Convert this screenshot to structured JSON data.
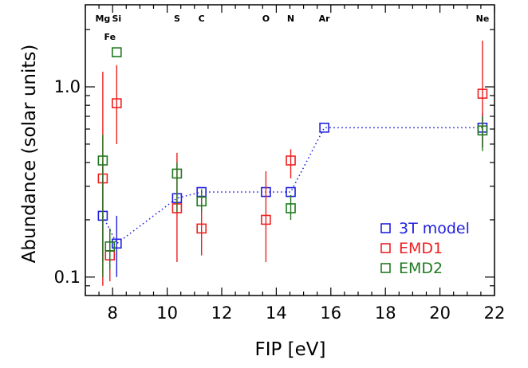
{
  "chart_data": {
    "type": "scatter",
    "title": "",
    "xlabel": "FIP [eV]",
    "ylabel": "Abundance (solar units)",
    "xlim": [
      7.0,
      22.0
    ],
    "ylim": [
      0.08,
      2.7
    ],
    "yscale": "log",
    "xticks": [
      8,
      10,
      12,
      14,
      16,
      18,
      20,
      22
    ],
    "xtick_labels": [
      "8",
      "10",
      "12",
      "14",
      "16",
      "18",
      "20",
      "22"
    ],
    "yticks": [
      0.1,
      1.0
    ],
    "ytick_labels": [
      "0.1",
      "1.0"
    ],
    "legend_position": "bottom-right",
    "element_labels": [
      {
        "text": "Mg",
        "x": 7.64,
        "row": 1
      },
      {
        "text": "Si",
        "x": 8.15,
        "row": 1
      },
      {
        "text": "Fe",
        "x": 7.9,
        "row": 2
      },
      {
        "text": "S",
        "x": 10.36,
        "row": 1
      },
      {
        "text": "C",
        "x": 11.26,
        "row": 1
      },
      {
        "text": "O",
        "x": 13.62,
        "row": 1
      },
      {
        "text": "N",
        "x": 14.53,
        "row": 1
      },
      {
        "text": "Ar",
        "x": 15.76,
        "row": 1
      },
      {
        "text": "Ne",
        "x": 21.56,
        "row": 1
      }
    ],
    "series": [
      {
        "name": "3T model",
        "color": "#2020e0",
        "line": "dotted",
        "points": [
          {
            "x": 7.64,
            "y": 0.21,
            "lo": 0.12,
            "hi": 0.4
          },
          {
            "x": 8.15,
            "y": 0.15,
            "lo": 0.1,
            "hi": 0.21
          },
          {
            "x": 10.36,
            "y": 0.26
          },
          {
            "x": 11.26,
            "y": 0.28
          },
          {
            "x": 13.62,
            "y": 0.28
          },
          {
            "x": 14.53,
            "y": 0.28
          },
          {
            "x": 15.76,
            "y": 0.61
          },
          {
            "x": 21.56,
            "y": 0.61,
            "lo": 0.48,
            "hi": 0.73
          }
        ]
      },
      {
        "name": "EMD1",
        "color": "#ee2020",
        "points": [
          {
            "x": 7.64,
            "y": 0.33,
            "lo": 0.09,
            "hi": 1.2
          },
          {
            "x": 7.9,
            "y": 0.13,
            "lo": 0.095,
            "hi": 0.18
          },
          {
            "x": 8.15,
            "y": 0.82,
            "lo": 0.5,
            "hi": 1.3
          },
          {
            "x": 10.36,
            "y": 0.23,
            "lo": 0.12,
            "hi": 0.45
          },
          {
            "x": 11.26,
            "y": 0.18,
            "lo": 0.13,
            "hi": 0.27
          },
          {
            "x": 13.62,
            "y": 0.2,
            "lo": 0.12,
            "hi": 0.36
          },
          {
            "x": 14.53,
            "y": 0.41,
            "lo": 0.33,
            "hi": 0.47
          },
          {
            "x": 21.56,
            "y": 0.92,
            "lo": 0.48,
            "hi": 1.75
          }
        ]
      },
      {
        "name": "EMD2",
        "color": "#1f7a1f",
        "points": [
          {
            "x": 7.64,
            "y": 0.41,
            "lo": 0.1,
            "hi": 0.56
          },
          {
            "x": 7.9,
            "y": 0.145,
            "lo": 0.11,
            "hi": 0.18
          },
          {
            "x": 8.15,
            "y": 1.52
          },
          {
            "x": 10.36,
            "y": 0.35,
            "lo": 0.22,
            "hi": 0.4
          },
          {
            "x": 11.26,
            "y": 0.25,
            "lo": 0.22,
            "hi": 0.29
          },
          {
            "x": 14.53,
            "y": 0.23,
            "lo": 0.2,
            "hi": 0.27
          },
          {
            "x": 21.56,
            "y": 0.59,
            "lo": 0.46,
            "hi": 0.7
          }
        ]
      }
    ]
  }
}
